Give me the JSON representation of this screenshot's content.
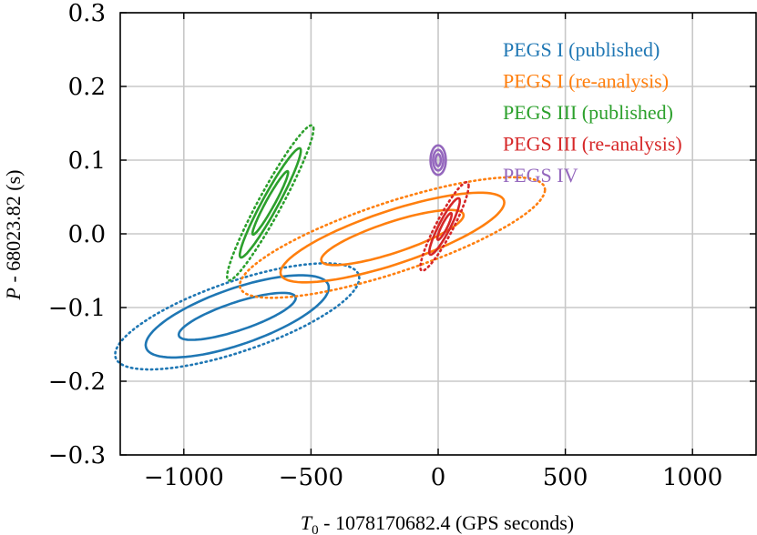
{
  "chart_data": {
    "type": "contour",
    "xlabel_var": "T",
    "xlabel_sub": "0",
    "xlabel_rest": " - 1078170682.4 (GPS seconds)",
    "ylabel_var": "P",
    "ylabel_rest": " - 68023.82 (s)",
    "xlim": [
      -1250,
      1250
    ],
    "ylim": [
      -0.3,
      0.3
    ],
    "xticks": [
      -1000,
      -500,
      0,
      500,
      1000
    ],
    "xtick_labels": [
      "−1000",
      "−500",
      "0",
      "500",
      "1000"
    ],
    "yticks": [
      -0.3,
      -0.2,
      -0.1,
      0.0,
      0.1,
      0.2,
      0.3
    ],
    "ytick_labels": [
      "−0.3",
      "−0.2",
      "−0.1",
      "0.0",
      "0.1",
      "0.2",
      "0.3"
    ],
    "grid": true,
    "legend_position": "top-right",
    "series": [
      {
        "name": "PEGS I (published)",
        "color": "#1f77b4",
        "center": [
          -790,
          -0.112
        ],
        "contours": [
          {
            "level": "1-sigma",
            "style": "solid",
            "dx": 230,
            "dy": 0.02
          },
          {
            "level": "2-sigma",
            "style": "solid",
            "dx": 360,
            "dy": 0.04
          },
          {
            "level": "3-sigma",
            "style": "dotted",
            "dx": 480,
            "dy": 0.05
          }
        ],
        "tilt": 0.000108
      },
      {
        "name": "PEGS I (re-analysis)",
        "color": "#ff7f0e",
        "center": [
          -180,
          -0.005
        ],
        "contours": [
          {
            "level": "1-sigma",
            "style": "solid",
            "dx": 280,
            "dy": 0.022
          },
          {
            "level": "2-sigma",
            "style": "solid",
            "dx": 440,
            "dy": 0.038
          },
          {
            "level": "3-sigma",
            "style": "dotted",
            "dx": 600,
            "dy": 0.05
          }
        ],
        "tilt": 0.000108
      },
      {
        "name": "PEGS III (published)",
        "color": "#2ca02c",
        "center": [
          -660,
          0.042
        ],
        "contours": [
          {
            "level": "1-sigma",
            "style": "solid",
            "dx": 70,
            "dy": 0.012
          },
          {
            "level": "2-sigma",
            "style": "solid",
            "dx": 120,
            "dy": 0.022
          },
          {
            "level": "3-sigma",
            "style": "dotted",
            "dx": 170,
            "dy": 0.032
          }
        ],
        "tilt": 0.00059
      },
      {
        "name": "PEGS III (re-analysis)",
        "color": "#d62728",
        "center": [
          25,
          0.01
        ],
        "contours": [
          {
            "level": "1-sigma",
            "style": "solid",
            "dx": 28,
            "dy": 0.008
          },
          {
            "level": "2-sigma",
            "style": "solid",
            "dx": 60,
            "dy": 0.016
          },
          {
            "level": "3-sigma",
            "style": "dotted",
            "dx": 95,
            "dy": 0.024
          }
        ],
        "tilt": 0.00058
      },
      {
        "name": "PEGS IV",
        "color": "#9467bd",
        "center": [
          0,
          0.1
        ],
        "contours": [
          {
            "level": "1-sigma",
            "style": "solid",
            "dx": 10,
            "dy": 0.008
          },
          {
            "level": "2-sigma",
            "style": "solid",
            "dx": 20,
            "dy": 0.014
          },
          {
            "level": "3-sigma",
            "style": "solid",
            "dx": 30,
            "dy": 0.02
          }
        ],
        "tilt": 0.0
      }
    ]
  }
}
